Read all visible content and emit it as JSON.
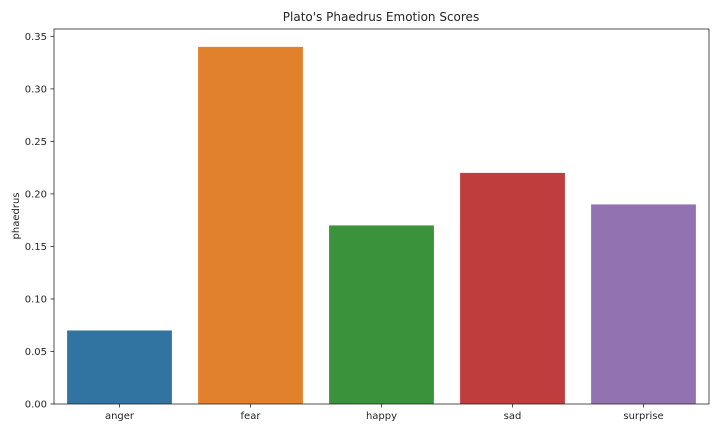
{
  "chart_data": {
    "type": "bar",
    "title": "Plato's Phaedrus Emotion Scores",
    "xlabel": "",
    "ylabel": "phaedrus",
    "categories": [
      "anger",
      "fear",
      "happy",
      "sad",
      "surprise"
    ],
    "values": [
      0.07,
      0.34,
      0.17,
      0.22,
      0.19
    ],
    "colors": [
      "#3274a1",
      "#e1812c",
      "#3a923a",
      "#c03d3e",
      "#9372b2"
    ],
    "ylim": [
      0,
      0.357
    ],
    "yticks": [
      "0.00",
      "0.05",
      "0.10",
      "0.15",
      "0.20",
      "0.25",
      "0.30",
      "0.35"
    ],
    "grid": false,
    "legend": "none"
  }
}
